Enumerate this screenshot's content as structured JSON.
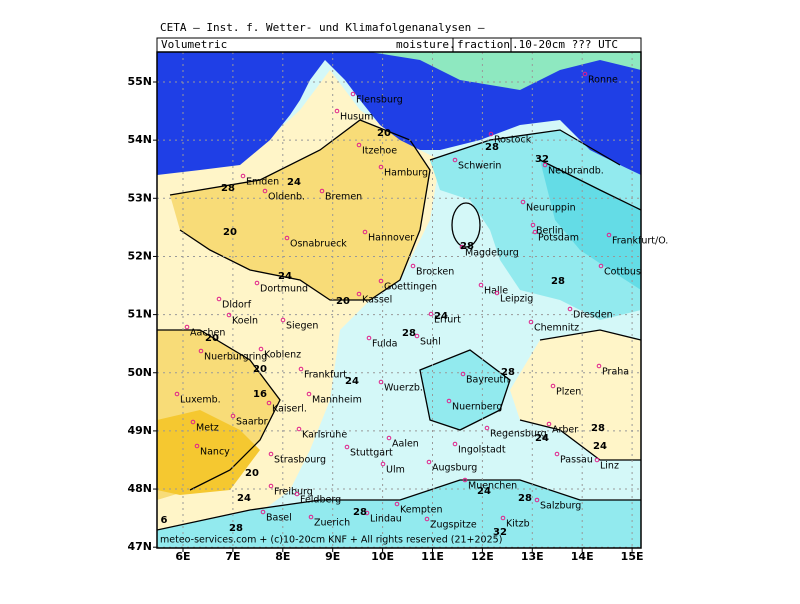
{
  "header": {
    "line1": "CETA – Inst. f. Wetter- und Klimafolgenanalysen –",
    "left": "Volumetric",
    "right_a": "moisture.",
    "right_box": "fraction",
    "right_b": ".10-20cm ??? UTC"
  },
  "axes": {
    "lat_labels": [
      "55N",
      "54N",
      "53N",
      "52N",
      "51N",
      "50N",
      "49N",
      "48N",
      "47N"
    ],
    "lon_labels": [
      "6E",
      "7E",
      "8E",
      "9E",
      "10E",
      "11E",
      "12E",
      "13E",
      "14E",
      "15E"
    ]
  },
  "cities": [
    "Flensburg",
    "Husum",
    "Itzehoe",
    "Hamburg",
    "Emden",
    "Oldenb.",
    "Bremen",
    "Rostock",
    "Schwerin",
    "Neubrandb.",
    "Neuruppin",
    "Berlin",
    "Potsdam",
    "Frankfurt/O.",
    "Hannover",
    "Osnabrueck",
    "Magdeburg",
    "Brocken",
    "Cottbus",
    "Dortmund",
    "Goettingen",
    "Kassel",
    "Halle",
    "Leipzig",
    "Dresden",
    "Dldorf",
    "Koeln",
    "Siegen",
    "Erfurt",
    "Chemnitz",
    "Aachen",
    "Fulda",
    "Suhl",
    "Nuerburgring",
    "Koblenz",
    "Frankfurt",
    "Bayreuth",
    "Plzen",
    "Praha",
    "Wuerzb.",
    "Luxemb.",
    "Mannheim",
    "Kaiserl.",
    "Nuernberg",
    "Saarbr.",
    "Metz",
    "Karlsruhe",
    "Regensburg",
    "Aalen",
    "Ingolstadt",
    "Stuttgart",
    "Nancy",
    "Strasbourg",
    "Passau",
    "Linz",
    "Ulm",
    "Augsburg",
    "Muenchen",
    "Freiburg",
    "Salzburg",
    "Kempten",
    "Basel",
    "Zuerich",
    "Lindau",
    "Kitzb",
    "Ronne",
    "Arber",
    "Zugspitze",
    "Feldberg"
  ],
  "contour_labels": [
    20,
    28,
    24,
    32,
    28,
    20,
    28,
    24,
    28,
    20,
    24,
    28,
    20,
    20,
    28,
    24,
    16,
    28,
    24,
    20,
    24,
    24,
    28,
    28,
    24,
    6,
    28,
    32
  ],
  "footer": "meteo-services.com + (c)10-20cm KNF + All rights reserved (21+2025)"
}
